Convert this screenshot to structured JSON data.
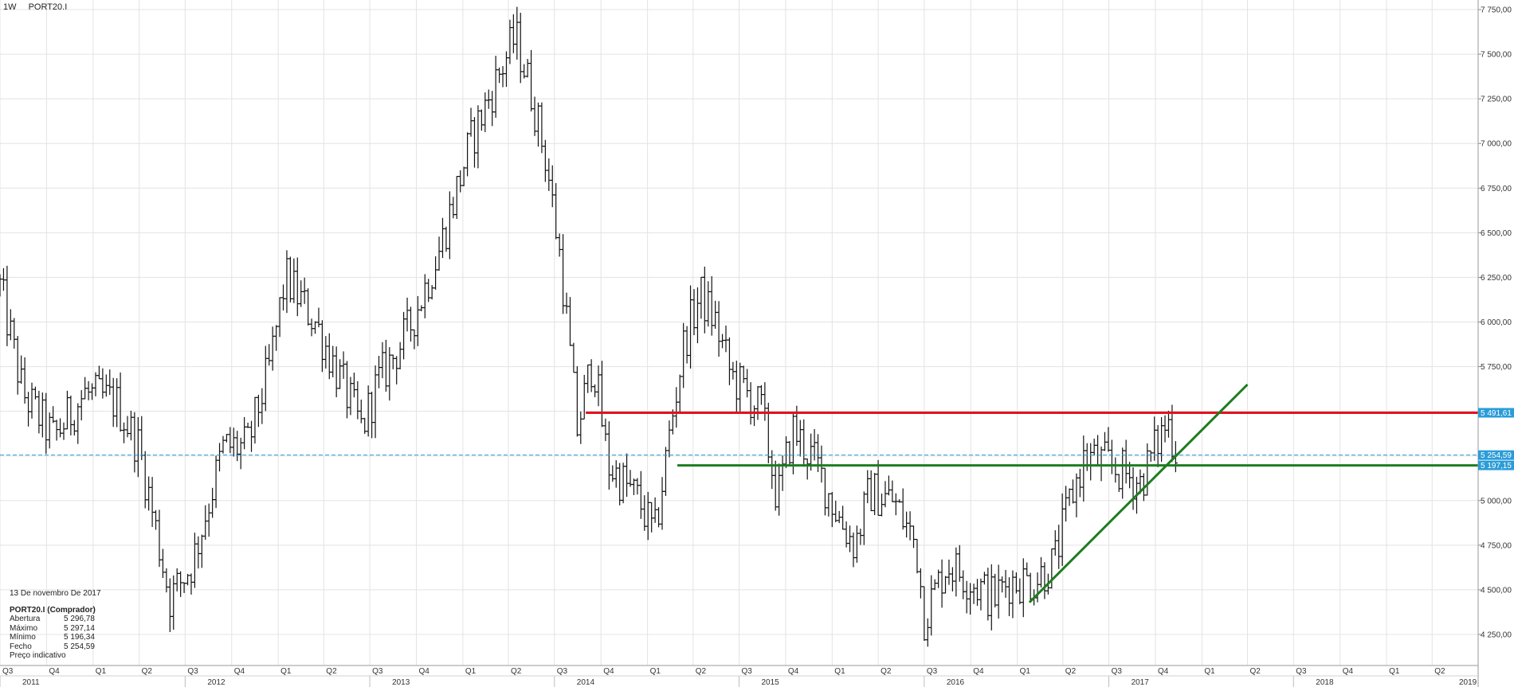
{
  "header": {
    "interval": "1W",
    "symbol": "PORT20.I"
  },
  "info_panel": {
    "date": "13 De novembro De 2017",
    "instrument": "PORT20.I (Comprador)",
    "rows": [
      {
        "label": "Abertura",
        "value": "5 296,78"
      },
      {
        "label": "Máximo",
        "value": "5 297,14"
      },
      {
        "label": "Mínimo",
        "value": "5 196,34"
      },
      {
        "label": "Fecho",
        "value": "5 254,59"
      }
    ],
    "note": "Preço indicativo"
  },
  "colors": {
    "resistance": "#e0141e",
    "support": "#1e7d1e",
    "current_tag": "#2b9cd8",
    "bars": "#111111",
    "grid": "#e3e3e3"
  },
  "chart_data": {
    "type": "ohlc",
    "interval": "1W",
    "ylim": [
      4150,
      7800
    ],
    "xlim": [
      "2011-07-01",
      "2019-07-01"
    ],
    "grid": true,
    "y_ticks": [
      {
        "value": 4250,
        "label": "4 250,00"
      },
      {
        "value": 4500,
        "label": "4 500,00"
      },
      {
        "value": 4750,
        "label": "4 750,00"
      },
      {
        "value": 5000,
        "label": "5 000,00"
      },
      {
        "value": 5250,
        "label": "5 250,00"
      },
      {
        "value": 5500,
        "label": "5 500,00"
      },
      {
        "value": 5750,
        "label": "5 750,00"
      },
      {
        "value": 6000,
        "label": "6 000,00"
      },
      {
        "value": 6250,
        "label": "6 250,00"
      },
      {
        "value": 6500,
        "label": "6 500,00"
      },
      {
        "value": 6750,
        "label": "6 750,00"
      },
      {
        "value": 7000,
        "label": "7 000,00"
      },
      {
        "value": 7250,
        "label": "7 250,00"
      },
      {
        "value": 7500,
        "label": "7 500,00"
      },
      {
        "value": 7750,
        "label": "7 750,00"
      }
    ],
    "quarter_labels": [
      {
        "date": "2011-07-01",
        "label": "Q3"
      },
      {
        "date": "2011-10-01",
        "label": "Q4"
      },
      {
        "date": "2012-01-01",
        "label": "Q1"
      },
      {
        "date": "2012-04-01",
        "label": "Q2"
      },
      {
        "date": "2012-07-01",
        "label": "Q3"
      },
      {
        "date": "2012-10-01",
        "label": "Q4"
      },
      {
        "date": "2013-01-01",
        "label": "Q1"
      },
      {
        "date": "2013-04-01",
        "label": "Q2"
      },
      {
        "date": "2013-07-01",
        "label": "Q3"
      },
      {
        "date": "2013-10-01",
        "label": "Q4"
      },
      {
        "date": "2014-01-01",
        "label": "Q1"
      },
      {
        "date": "2014-04-01",
        "label": "Q2"
      },
      {
        "date": "2014-07-01",
        "label": "Q3"
      },
      {
        "date": "2014-10-01",
        "label": "Q4"
      },
      {
        "date": "2015-01-01",
        "label": "Q1"
      },
      {
        "date": "2015-04-01",
        "label": "Q2"
      },
      {
        "date": "2015-07-01",
        "label": "Q3"
      },
      {
        "date": "2015-10-01",
        "label": "Q4"
      },
      {
        "date": "2016-01-01",
        "label": "Q1"
      },
      {
        "date": "2016-04-01",
        "label": "Q2"
      },
      {
        "date": "2016-07-01",
        "label": "Q3"
      },
      {
        "date": "2016-10-01",
        "label": "Q4"
      },
      {
        "date": "2017-01-01",
        "label": "Q1"
      },
      {
        "date": "2017-04-01",
        "label": "Q2"
      },
      {
        "date": "2017-07-01",
        "label": "Q3"
      },
      {
        "date": "2017-10-01",
        "label": "Q4"
      },
      {
        "date": "2018-01-01",
        "label": "Q1"
      },
      {
        "date": "2018-04-01",
        "label": "Q2"
      },
      {
        "date": "2018-07-01",
        "label": "Q3"
      },
      {
        "date": "2018-10-01",
        "label": "Q4"
      },
      {
        "date": "2019-01-01",
        "label": "Q1"
      },
      {
        "date": "2019-04-01",
        "label": "Q2"
      }
    ],
    "year_labels": [
      {
        "date": "2011-07-01",
        "label": "2011"
      },
      {
        "date": "2012-07-01",
        "label": "2012"
      },
      {
        "date": "2013-07-01",
        "label": "2013"
      },
      {
        "date": "2014-07-01",
        "label": "2014"
      },
      {
        "date": "2015-07-01",
        "label": "2015"
      },
      {
        "date": "2016-07-01",
        "label": "2016"
      },
      {
        "date": "2017-07-01",
        "label": "2017"
      },
      {
        "date": "2018-07-01",
        "label": "2018"
      },
      {
        "date": "2019-07-01",
        "label": "2019"
      }
    ],
    "price_path": [
      [
        "2011-07-01",
        6200
      ],
      [
        "2011-08-15",
        5600
      ],
      [
        "2011-10-15",
        5350
      ],
      [
        "2011-12-15",
        5600
      ],
      [
        "2012-02-15",
        5550
      ],
      [
        "2012-04-01",
        5300
      ],
      [
        "2012-06-01",
        4450
      ],
      [
        "2012-07-15",
        4650
      ],
      [
        "2012-09-15",
        5300
      ],
      [
        "2012-11-01",
        5300
      ],
      [
        "2012-12-15",
        5750
      ],
      [
        "2013-01-15",
        6250
      ],
      [
        "2013-03-15",
        6000
      ],
      [
        "2013-04-15",
        5800
      ],
      [
        "2013-06-15",
        5400
      ],
      [
        "2013-07-15",
        5650
      ],
      [
        "2013-09-15",
        5950
      ],
      [
        "2013-11-15",
        6400
      ],
      [
        "2014-01-15",
        7000
      ],
      [
        "2014-03-15",
        7400
      ],
      [
        "2014-04-15",
        7600
      ],
      [
        "2014-05-15",
        7300
      ],
      [
        "2014-06-15",
        6900
      ],
      [
        "2014-07-15",
        6300
      ],
      [
        "2014-08-15",
        5400
      ],
      [
        "2014-09-15",
        5800
      ],
      [
        "2014-10-15",
        5200
      ],
      [
        "2014-12-15",
        5000
      ],
      [
        "2015-01-15",
        4800
      ],
      [
        "2015-02-15",
        5400
      ],
      [
        "2015-03-15",
        5900
      ],
      [
        "2015-04-15",
        6150
      ],
      [
        "2015-05-15",
        6000
      ],
      [
        "2015-06-15",
        5700
      ],
      [
        "2015-08-15",
        5500
      ],
      [
        "2015-09-15",
        5000
      ],
      [
        "2015-10-15",
        5400
      ],
      [
        "2015-12-01",
        5200
      ],
      [
        "2016-01-15",
        4900
      ],
      [
        "2016-02-15",
        4750
      ],
      [
        "2016-03-15",
        5050
      ],
      [
        "2016-05-01",
        5000
      ],
      [
        "2016-06-15",
        4750
      ],
      [
        "2016-07-01",
        4350
      ],
      [
        "2016-08-15",
        4650
      ],
      [
        "2016-10-01",
        4550
      ],
      [
        "2016-11-15",
        4450
      ],
      [
        "2016-12-15",
        4550
      ],
      [
        "2017-02-01",
        4550
      ],
      [
        "2017-03-15",
        4650
      ],
      [
        "2017-04-15",
        5000
      ],
      [
        "2017-05-15",
        5250
      ],
      [
        "2017-07-01",
        5200
      ],
      [
        "2017-09-01",
        5100
      ],
      [
        "2017-10-01",
        5300
      ],
      [
        "2017-10-25",
        5450
      ],
      [
        "2017-11-13",
        5255
      ]
    ],
    "annotations": {
      "resistance": {
        "price": 5491.61,
        "label": "5 491,61",
        "from": "2014-09-01",
        "to": "2019-07-01"
      },
      "support": {
        "price": 5197.15,
        "label": "5 197,15",
        "from": "2015-03-01",
        "to": "2019-07-01"
      },
      "current": {
        "price": 5254.59,
        "label": "5 254,59"
      },
      "trendline": {
        "from": [
          "2017-01-25",
          4430
        ],
        "to": [
          "2018-04-01",
          5650
        ]
      }
    }
  }
}
